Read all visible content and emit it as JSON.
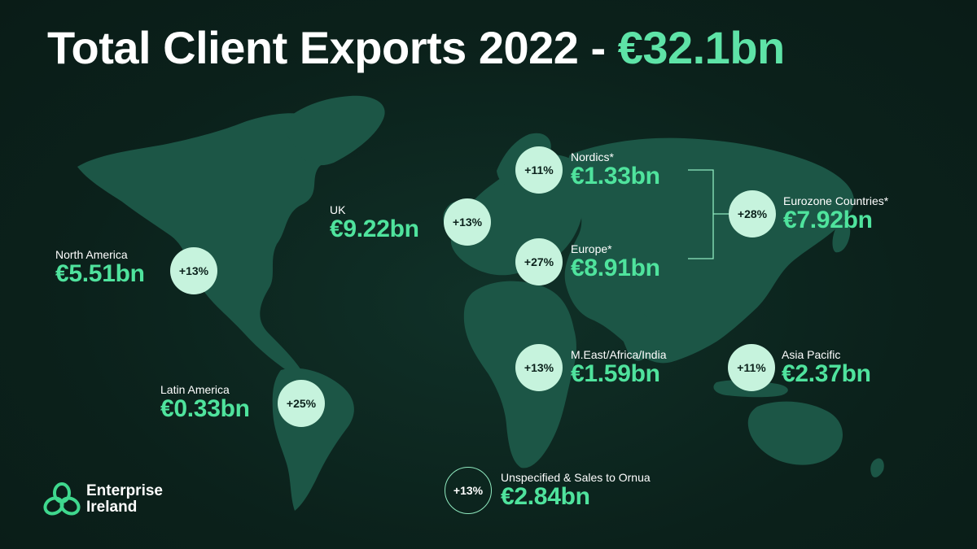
{
  "title": {
    "main": "Total Client Exports 2022 - ",
    "total": "€32.1bn"
  },
  "colors": {
    "background": "#0c221c",
    "land": "#1d5a48",
    "accent": "#4fe39d",
    "badge": "#c6f3dd"
  },
  "regions": {
    "north_america": {
      "label": "North America",
      "value": "€5.51bn",
      "growth": "+13%"
    },
    "latin_america": {
      "label": "Latin America",
      "value": "€0.33bn",
      "growth": "+25%"
    },
    "uk": {
      "label": "UK",
      "value": "€9.22bn",
      "growth": "+13%"
    },
    "nordics": {
      "label": "Nordics*",
      "value": "€1.33bn",
      "growth": "+11%"
    },
    "europe": {
      "label": "Europe*",
      "value": "€8.91bn",
      "growth": "+27%"
    },
    "eurozone": {
      "label": "Eurozone Countries*",
      "value": "€7.92bn",
      "growth": "+28%"
    },
    "meai": {
      "label": "M.East/Africa/India",
      "value": "€1.59bn",
      "growth": "+13%"
    },
    "asia_pacific": {
      "label": "Asia Pacific",
      "value": "€2.37bn",
      "growth": "+11%"
    },
    "unspecified": {
      "label": "Unspecified & Sales to Ornua",
      "value": "€2.84bn",
      "growth": "+13%"
    }
  },
  "logo": {
    "line1": "Enterprise",
    "line2": "Ireland",
    "icon": "trefoil-logo-icon"
  }
}
